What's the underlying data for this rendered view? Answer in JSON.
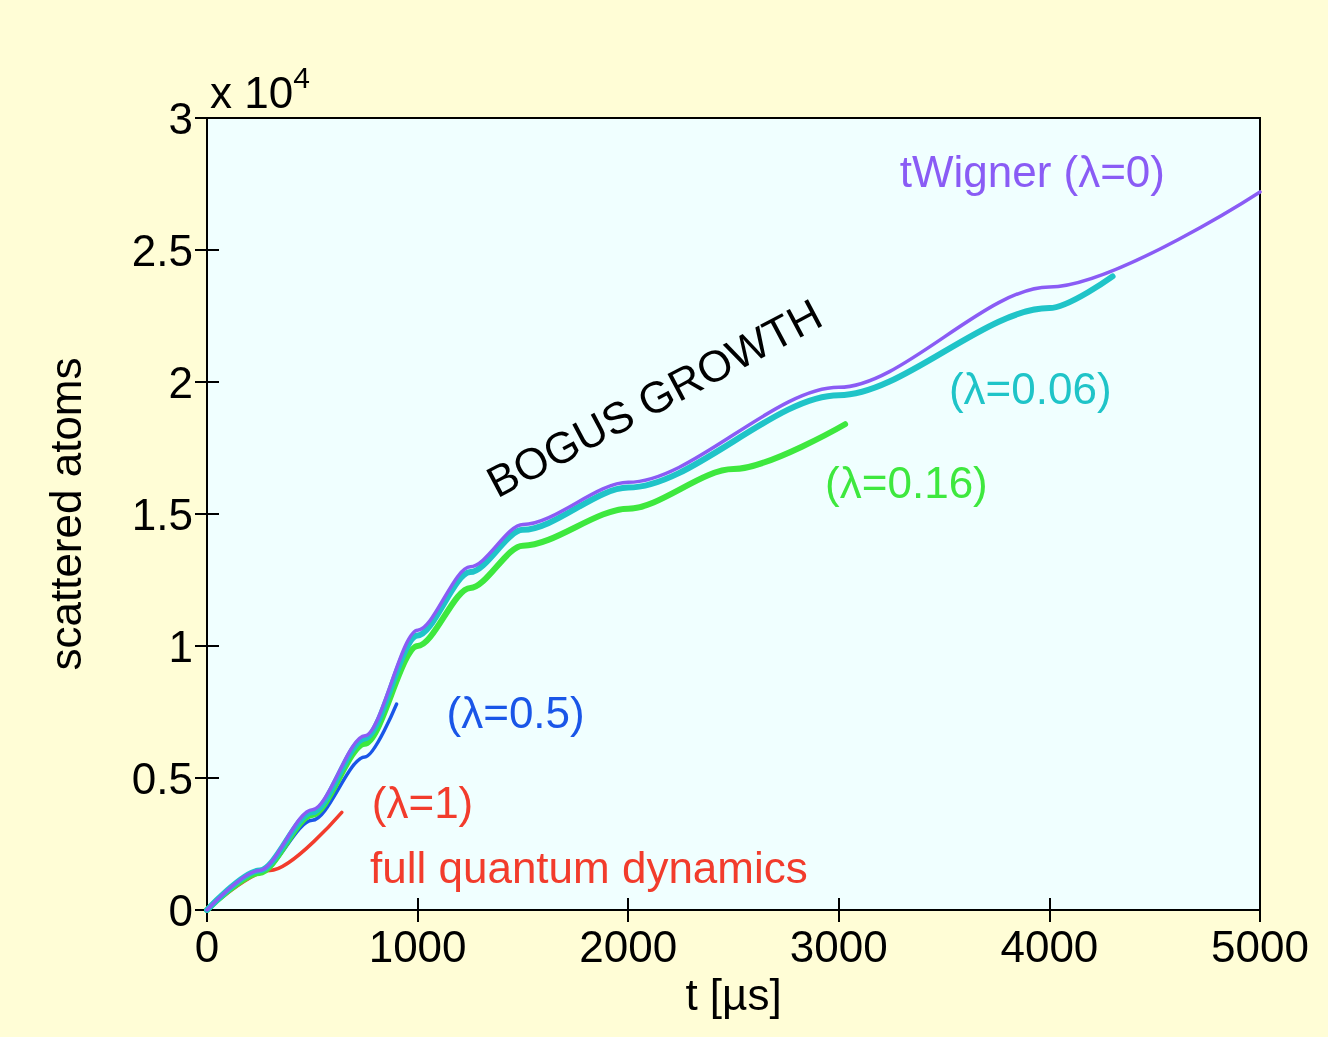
{
  "chart_data": {
    "type": "line",
    "xlabel": "t [µs]",
    "ylabel": "scattered atoms",
    "xlim": [
      0,
      5000
    ],
    "xticks": [
      0,
      1000,
      2000,
      3000,
      4000,
      5000
    ],
    "ylim": [
      0,
      3
    ],
    "yticks": [
      0,
      0.5,
      1,
      1.5,
      2,
      2.5,
      3
    ],
    "grid": false,
    "legend": false,
    "marker": "none",
    "line_style": "solid",
    "series": [
      {
        "name": "tWigner (λ=0)",
        "color": "#8a5cf5",
        "x": [
          0,
          250,
          500,
          750,
          1000,
          1250,
          1500,
          2000,
          3000,
          4000,
          5000
        ],
        "values": [
          0,
          0.15,
          0.38,
          0.66,
          1.06,
          1.3,
          1.46,
          1.62,
          1.98,
          2.36,
          2.72
        ]
      },
      {
        "name": "(λ=0.06)",
        "color": "#1fc4c8",
        "x": [
          0,
          250,
          500,
          750,
          1000,
          1250,
          1500,
          2000,
          3000,
          4000,
          4300
        ],
        "values": [
          0,
          0.15,
          0.37,
          0.65,
          1.04,
          1.28,
          1.44,
          1.6,
          1.95,
          2.28,
          2.4
        ]
      },
      {
        "name": "(λ=0.16)",
        "color": "#3ee83e",
        "x": [
          0,
          250,
          500,
          750,
          1000,
          1250,
          1500,
          2000,
          2500,
          3030
        ],
        "values": [
          0,
          0.14,
          0.36,
          0.63,
          1.0,
          1.22,
          1.38,
          1.52,
          1.67,
          1.84
        ]
      },
      {
        "name": "(λ=0.5)",
        "color": "#1a56e8",
        "x": [
          0,
          250,
          500,
          750,
          900
        ],
        "values": [
          0,
          0.14,
          0.34,
          0.58,
          0.78
        ]
      },
      {
        "name": "(λ=1)",
        "color": "#f23c2c",
        "x": [
          0,
          300,
          640
        ],
        "values": [
          0,
          0.15,
          0.37
        ]
      }
    ],
    "annotations": [
      "x 10$^{4}$",
      "BOGUS GROWTH",
      "full quantum dynamics"
    ]
  }
}
